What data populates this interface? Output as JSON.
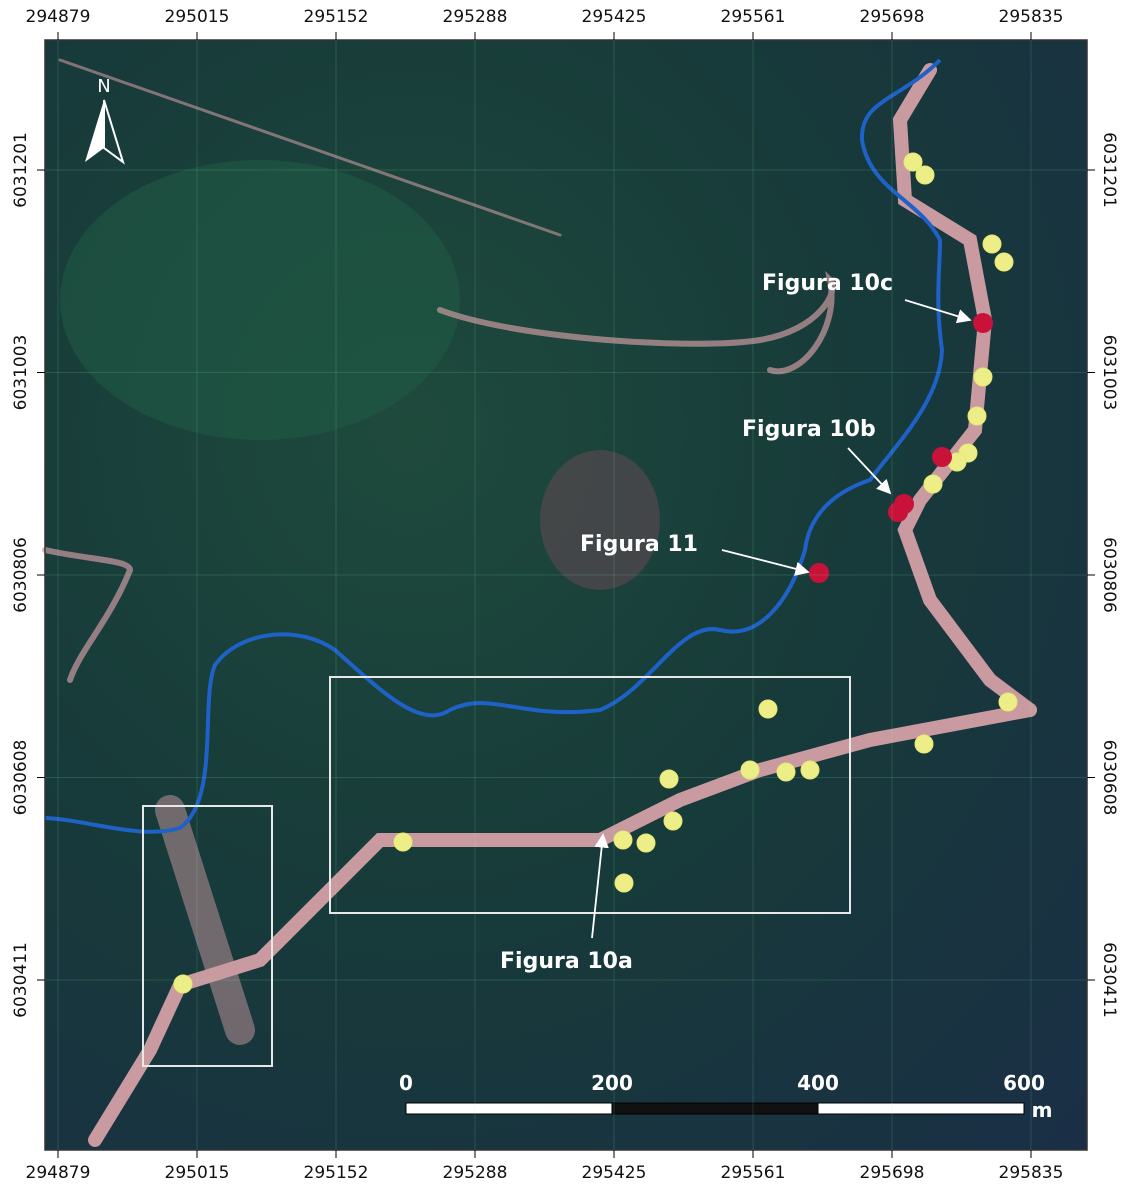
{
  "map": {
    "top_ticks": [
      294879,
      295015,
      295152,
      295288,
      295425,
      295561,
      295698,
      295835
    ],
    "bottom_ticks": [
      294879,
      295015,
      295152,
      295288,
      295425,
      295561,
      295698,
      295835
    ],
    "left_ticks": [
      6031201,
      6031003,
      6030806,
      6030608,
      6030411
    ],
    "right_ticks": [
      6031201,
      6031003,
      6030806,
      6030608,
      6030411
    ],
    "north": "N",
    "annotations": [
      "Figura 10c",
      "Figura 10b",
      "Figura 11",
      "Figura 10a"
    ],
    "scale": {
      "labels": [
        "0",
        "200",
        "400",
        "600"
      ],
      "unit": "m"
    }
  }
}
